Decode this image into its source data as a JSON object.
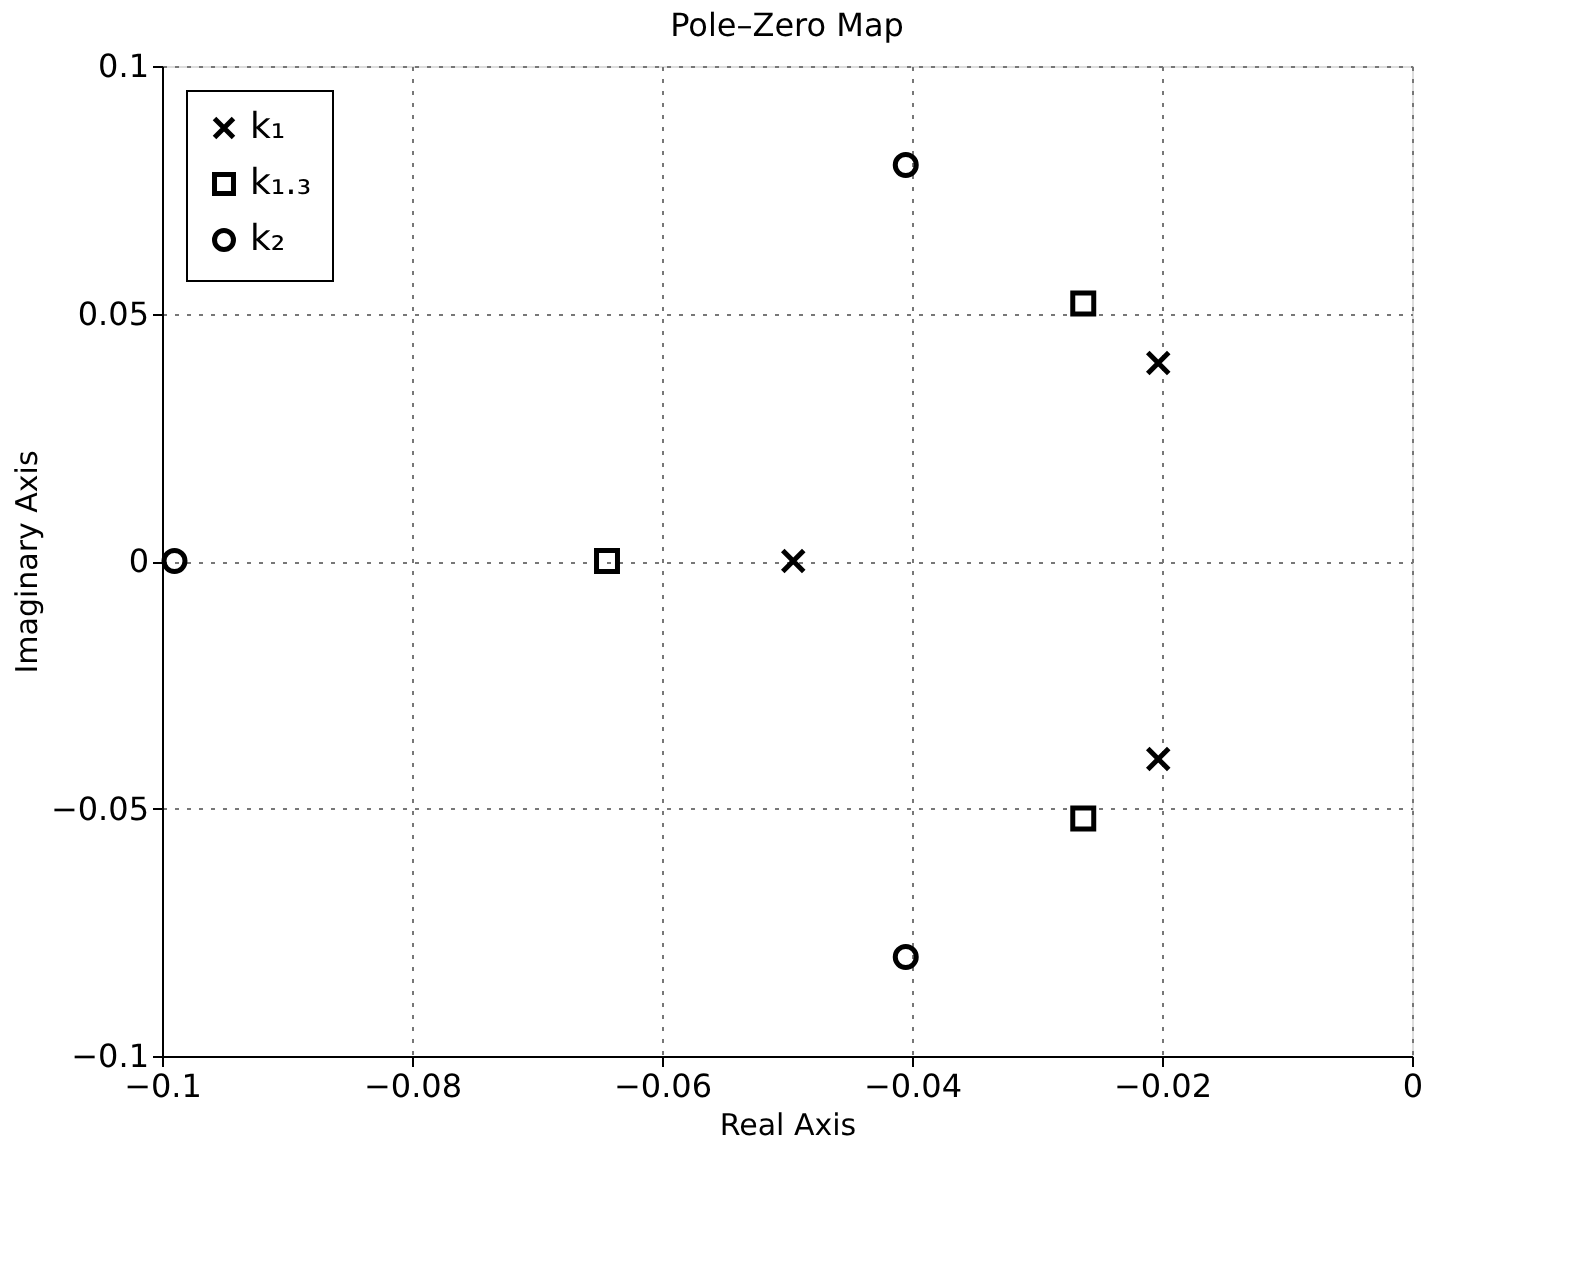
{
  "chart_data": {
    "type": "scatter",
    "title": "Pole–Zero Map",
    "xlabel": "Real Axis",
    "ylabel": "Imaginary Axis",
    "series": [
      {
        "name": "k₁",
        "color": "#000000",
        "marker": "cross",
        "x": [
          -0.0495,
          -0.0203,
          -0.0203
        ],
        "values": [
          0,
          0.04,
          -0.04
        ]
      },
      {
        "name": "k₁.₃",
        "color": "#000000",
        "marker": "square",
        "x": [
          -0.0644,
          -0.0263,
          -0.0263
        ],
        "values": [
          0,
          0.052,
          -0.052
        ]
      },
      {
        "name": "k₂",
        "color": "#000000",
        "marker": "circle",
        "x": [
          -0.099,
          -0.0405,
          -0.0405
        ],
        "values": [
          0,
          0.08,
          -0.08
        ]
      }
    ],
    "xlim": [
      -0.1,
      0
    ],
    "ylim": [
      -0.1,
      0.1
    ],
    "xticks": [
      -0.1,
      -0.08,
      -0.06,
      -0.04,
      -0.02,
      0
    ],
    "yticks": [
      -0.1,
      -0.05,
      0,
      0.05,
      0.1
    ],
    "grid": true,
    "legend": "top left"
  }
}
